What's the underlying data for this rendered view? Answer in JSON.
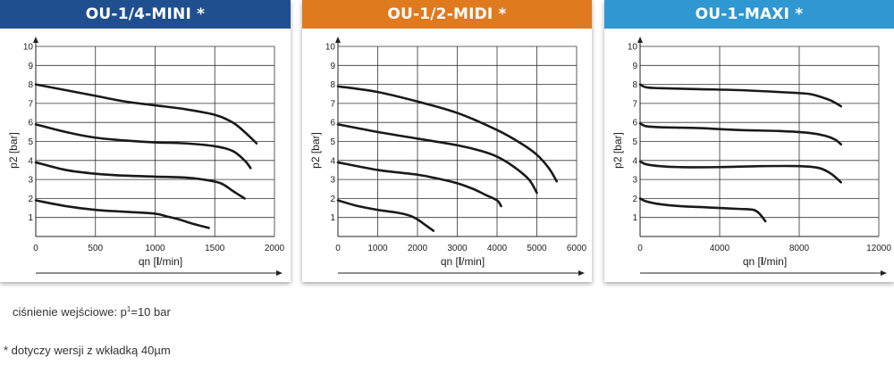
{
  "colors": {
    "mini": "#1f4f8f",
    "midi": "#e07a1f",
    "maxi": "#2f97d1",
    "curve": "#1a1a1a",
    "grid": "#333333"
  },
  "chart_data": [
    {
      "type": "line",
      "title": "OU-1/4-MINI *",
      "xlabel_prefix": "qn [",
      "xlabel_bold": "l",
      "xlabel_suffix": "/min]",
      "ylabel": "p2 [bar]",
      "xlim": [
        0,
        2000
      ],
      "ylim": [
        0,
        10
      ],
      "xticks": [
        0,
        500,
        1000,
        1500,
        2000
      ],
      "yticks": [
        1,
        2,
        3,
        4,
        5,
        6,
        7,
        8,
        9,
        10
      ],
      "grid": true,
      "series": [
        {
          "x": [
            0,
            250,
            500,
            750,
            1000,
            1250,
            1500,
            1650,
            1750,
            1850
          ],
          "y": [
            8.0,
            7.7,
            7.4,
            7.1,
            6.9,
            6.7,
            6.4,
            6.0,
            5.5,
            4.9
          ]
        },
        {
          "x": [
            0,
            250,
            500,
            750,
            1000,
            1250,
            1500,
            1650,
            1750,
            1800
          ],
          "y": [
            5.9,
            5.5,
            5.2,
            5.05,
            4.95,
            4.9,
            4.75,
            4.5,
            4.0,
            3.6
          ]
        },
        {
          "x": [
            0,
            250,
            500,
            750,
            1000,
            1250,
            1400,
            1550,
            1650,
            1750
          ],
          "y": [
            3.9,
            3.5,
            3.3,
            3.2,
            3.15,
            3.1,
            3.0,
            2.8,
            2.4,
            2.0
          ]
        },
        {
          "x": [
            0,
            250,
            500,
            750,
            1000,
            1100,
            1200,
            1300,
            1450
          ],
          "y": [
            1.9,
            1.6,
            1.4,
            1.3,
            1.2,
            1.05,
            0.9,
            0.7,
            0.45
          ]
        }
      ]
    },
    {
      "type": "line",
      "title": "OU-1/2-MIDI *",
      "xlabel_prefix": "qn [",
      "xlabel_bold": "l",
      "xlabel_suffix": "/min]",
      "ylabel": "p2 [bar]",
      "xlim": [
        0,
        6000
      ],
      "ylim": [
        0,
        10
      ],
      "xticks": [
        0,
        1000,
        2000,
        3000,
        4000,
        5000,
        6000
      ],
      "yticks": [
        1,
        2,
        3,
        4,
        5,
        6,
        7,
        8,
        9,
        10
      ],
      "grid": true,
      "series": [
        {
          "x": [
            0,
            1000,
            2000,
            3000,
            4000,
            4600,
            5000,
            5300,
            5500
          ],
          "y": [
            7.9,
            7.6,
            7.1,
            6.5,
            5.6,
            4.9,
            4.3,
            3.6,
            2.9
          ]
        },
        {
          "x": [
            0,
            1000,
            2000,
            3000,
            3600,
            4000,
            4400,
            4800,
            5000
          ],
          "y": [
            5.9,
            5.5,
            5.15,
            4.8,
            4.5,
            4.2,
            3.7,
            3.0,
            2.3
          ]
        },
        {
          "x": [
            0,
            1000,
            2000,
            2500,
            3000,
            3400,
            3700,
            4000,
            4100
          ],
          "y": [
            3.9,
            3.5,
            3.25,
            3.05,
            2.8,
            2.5,
            2.2,
            1.9,
            1.6
          ]
        },
        {
          "x": [
            0,
            500,
            1000,
            1500,
            1800,
            2000,
            2200,
            2400
          ],
          "y": [
            1.9,
            1.6,
            1.4,
            1.25,
            1.1,
            0.9,
            0.6,
            0.3
          ]
        }
      ]
    },
    {
      "type": "line",
      "title": "OU-1-MAXI *",
      "xlabel_prefix": "qn [",
      "xlabel_bold": "l",
      "xlabel_suffix": "/min]",
      "ylabel": "p2 [bar]",
      "xlim": [
        0,
        12000
      ],
      "ylim": [
        0,
        10
      ],
      "xticks": [
        0,
        4000,
        8000,
        12000
      ],
      "yticks": [
        1,
        2,
        3,
        4,
        5,
        6,
        7,
        8,
        9,
        10
      ],
      "grid": true,
      "series": [
        {
          "x": [
            0,
            300,
            1000,
            3000,
            5000,
            7000,
            8500,
            9200,
            9700,
            10100
          ],
          "y": [
            8.0,
            7.85,
            7.8,
            7.75,
            7.7,
            7.6,
            7.5,
            7.3,
            7.1,
            6.85
          ]
        },
        {
          "x": [
            0,
            300,
            1000,
            3000,
            5000,
            7000,
            8500,
            9300,
            9800,
            10100
          ],
          "y": [
            5.95,
            5.8,
            5.75,
            5.7,
            5.6,
            5.55,
            5.45,
            5.3,
            5.1,
            4.85
          ]
        },
        {
          "x": [
            0,
            300,
            1000,
            2000,
            4000,
            6000,
            8000,
            9000,
            9600,
            10100
          ],
          "y": [
            3.95,
            3.8,
            3.7,
            3.65,
            3.65,
            3.7,
            3.7,
            3.6,
            3.3,
            2.85
          ]
        },
        {
          "x": [
            0,
            300,
            1000,
            2000,
            3000,
            4000,
            5000,
            5700,
            6000,
            6300
          ],
          "y": [
            2.0,
            1.85,
            1.7,
            1.6,
            1.55,
            1.5,
            1.45,
            1.4,
            1.2,
            0.8
          ]
        }
      ]
    }
  ],
  "notes": {
    "pressure_prefix": "ciśnienie wejściowe: p",
    "pressure_sup": "1",
    "pressure_suffix": "=10 bar",
    "version_note": "* dotyczy wersji z wkładką 40µm"
  }
}
